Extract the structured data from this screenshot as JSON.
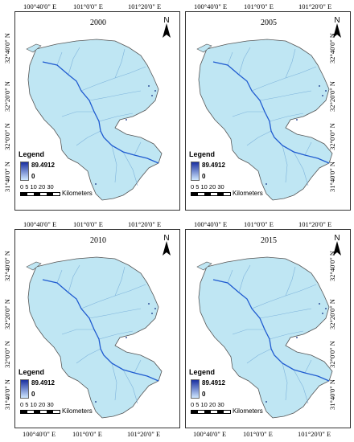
{
  "top_labels": [
    "100°40'0\" E",
    "101°0'0\" E",
    "101°20'0\" E"
  ],
  "side_labels": [
    "32°40'0\" N",
    "32°20'0\" N",
    "32°0'0\" N",
    "31°40'0\" N"
  ],
  "legend": {
    "title": "Legend",
    "max": "89.4912",
    "min": "0",
    "color_high": "#1a2fa0",
    "color_low": "#cfe7ff"
  },
  "scale": {
    "ticks": "0  5 10     20     30",
    "unit": "Kilometers"
  },
  "north_label": "N",
  "panels": [
    {
      "year": "2000"
    },
    {
      "year": "2005"
    },
    {
      "year": "2010"
    },
    {
      "year": "2015"
    }
  ],
  "colors": {
    "land": "#bfe6f3",
    "river": "#1f5bd0",
    "outline": "#555"
  }
}
